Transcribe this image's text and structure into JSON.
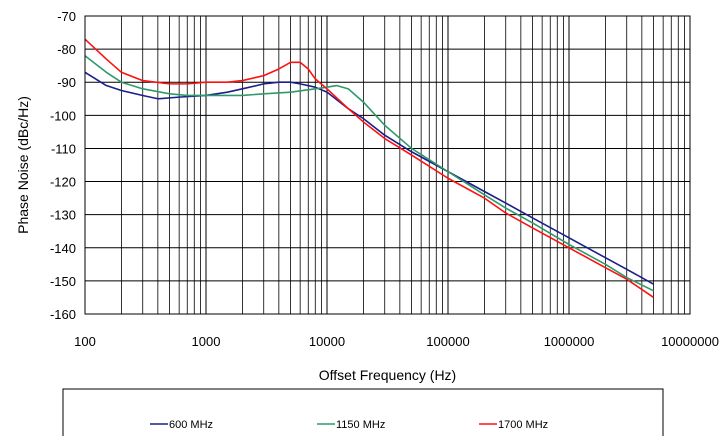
{
  "chart_data": {
    "type": "line",
    "title": "",
    "xlabel": "Offset Frequency (Hz)",
    "ylabel": "Phase Noise (dBc/Hz)",
    "xscale": "log",
    "xlim": [
      100,
      10000000
    ],
    "ylim": [
      -160,
      -70
    ],
    "x_ticks": [
      "100",
      "1000",
      "10000",
      "100000",
      "1000000",
      "10000000"
    ],
    "y_ticks": [
      "-70",
      "-80",
      "-90",
      "-100",
      "-110",
      "-120",
      "-130",
      "-140",
      "-150",
      "-160"
    ],
    "grid": true,
    "legend_position": "bottom",
    "series": [
      {
        "name": "600 MHz",
        "color": "#1b1f8a",
        "points": [
          [
            100,
            -87
          ],
          [
            150,
            -91
          ],
          [
            200,
            -92.5
          ],
          [
            300,
            -94
          ],
          [
            400,
            -95
          ],
          [
            600,
            -94.5
          ],
          [
            1000,
            -94
          ],
          [
            1500,
            -93
          ],
          [
            2000,
            -92
          ],
          [
            3000,
            -90.5
          ],
          [
            4000,
            -90
          ],
          [
            5000,
            -90
          ],
          [
            6000,
            -90.5
          ],
          [
            8000,
            -91.5
          ],
          [
            10000,
            -93
          ],
          [
            15000,
            -98
          ],
          [
            20000,
            -101
          ],
          [
            30000,
            -106
          ],
          [
            50000,
            -111
          ],
          [
            100000,
            -117
          ],
          [
            200000,
            -123
          ],
          [
            300000,
            -126.5
          ],
          [
            500000,
            -131
          ],
          [
            1000000,
            -137
          ],
          [
            2000000,
            -143
          ],
          [
            3000000,
            -146.5
          ],
          [
            5000000,
            -151
          ]
        ]
      },
      {
        "name": "1150 MHz",
        "color": "#2e9a6a",
        "points": [
          [
            100,
            -82
          ],
          [
            150,
            -87
          ],
          [
            200,
            -90
          ],
          [
            300,
            -92
          ],
          [
            500,
            -93.5
          ],
          [
            700,
            -94
          ],
          [
            1000,
            -94
          ],
          [
            2000,
            -94
          ],
          [
            3000,
            -93.5
          ],
          [
            5000,
            -93
          ],
          [
            8000,
            -92
          ],
          [
            10000,
            -91.5
          ],
          [
            12000,
            -91
          ],
          [
            15000,
            -92
          ],
          [
            20000,
            -96
          ],
          [
            30000,
            -103
          ],
          [
            50000,
            -110
          ],
          [
            100000,
            -117
          ],
          [
            200000,
            -124
          ],
          [
            300000,
            -128
          ],
          [
            500000,
            -132.5
          ],
          [
            1000000,
            -139
          ],
          [
            2000000,
            -145
          ],
          [
            3000000,
            -149
          ],
          [
            5000000,
            -153
          ]
        ]
      },
      {
        "name": "1700 MHz",
        "color": "#ff1010",
        "points": [
          [
            100,
            -77
          ],
          [
            150,
            -83
          ],
          [
            200,
            -87
          ],
          [
            300,
            -89.5
          ],
          [
            500,
            -90.5
          ],
          [
            700,
            -90.5
          ],
          [
            1000,
            -90
          ],
          [
            1500,
            -90
          ],
          [
            2000,
            -89.5
          ],
          [
            3000,
            -88
          ],
          [
            4000,
            -86
          ],
          [
            5000,
            -84
          ],
          [
            6000,
            -84
          ],
          [
            7000,
            -86
          ],
          [
            8000,
            -89
          ],
          [
            10000,
            -92
          ],
          [
            15000,
            -98
          ],
          [
            20000,
            -102
          ],
          [
            30000,
            -107
          ],
          [
            50000,
            -112
          ],
          [
            100000,
            -119
          ],
          [
            200000,
            -125
          ],
          [
            300000,
            -129.5
          ],
          [
            500000,
            -134
          ],
          [
            1000000,
            -140
          ],
          [
            2000000,
            -146
          ],
          [
            3000000,
            -149.5
          ],
          [
            5000000,
            -155
          ]
        ]
      }
    ]
  }
}
